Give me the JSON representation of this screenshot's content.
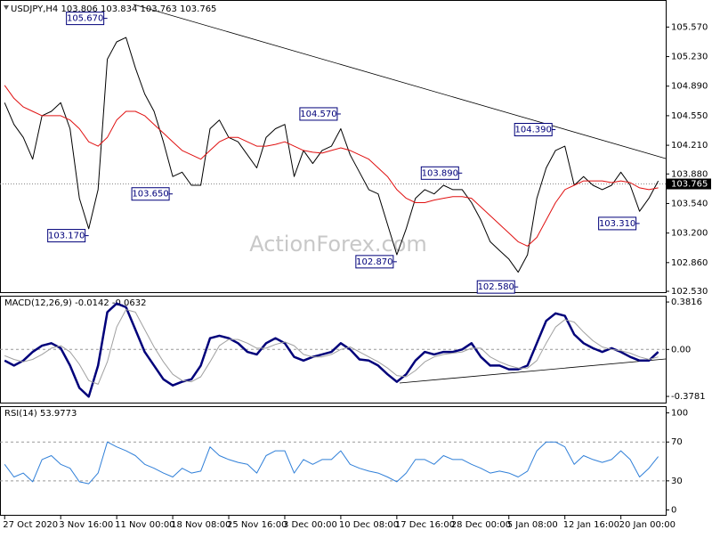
{
  "chart_data": [
    {
      "type": "line",
      "title": "USDJPY,H4  103.806 103.834 103.763 103.765",
      "watermark": "ActionForex.com",
      "xlim": [
        -0.5,
        70.8
      ],
      "ylim": [
        102.52,
        105.83
      ],
      "yticks": [
        {
          "value": 105.57,
          "label": "105.570"
        },
        {
          "value": 105.23,
          "label": "105.230"
        },
        {
          "value": 104.89,
          "label": "104.890"
        },
        {
          "value": 104.55,
          "label": "104.550"
        },
        {
          "value": 104.21,
          "label": "104.210"
        },
        {
          "value": 103.88,
          "label": "103.880"
        },
        {
          "value": 103.54,
          "label": "103.540"
        },
        {
          "value": 103.2,
          "label": "103.200"
        },
        {
          "value": 102.86,
          "label": "102.860"
        },
        {
          "value": 102.53,
          "label": "102.530"
        }
      ],
      "current_price": 103.765,
      "series": [
        {
          "color": "#000000",
          "values": [
            104.7,
            104.45,
            104.3,
            104.05,
            104.55,
            104.6,
            104.7,
            104.4,
            103.6,
            103.25,
            103.7,
            105.2,
            105.4,
            105.45,
            105.1,
            104.8,
            104.6,
            104.25,
            103.85,
            103.9,
            103.75,
            103.75,
            104.4,
            104.5,
            104.3,
            104.25,
            104.1,
            103.95,
            104.3,
            104.4,
            104.45,
            103.85,
            104.15,
            104.0,
            104.15,
            104.2,
            104.4,
            104.1,
            103.9,
            103.7,
            103.65,
            103.3,
            102.95,
            103.25,
            103.6,
            103.7,
            103.65,
            103.75,
            103.7,
            103.7,
            103.55,
            103.35,
            103.1,
            103.0,
            102.9,
            102.75,
            102.95,
            103.6,
            103.95,
            104.15,
            104.2,
            103.75,
            103.85,
            103.75,
            103.7,
            103.75,
            103.9,
            103.75,
            103.45,
            103.6,
            103.8
          ]
        },
        {
          "color": "#e01010",
          "values": [
            104.9,
            104.75,
            104.65,
            104.6,
            104.55,
            104.55,
            104.55,
            104.5,
            104.4,
            104.25,
            104.2,
            104.3,
            104.5,
            104.6,
            104.6,
            104.55,
            104.45,
            104.35,
            104.25,
            104.15,
            104.1,
            104.05,
            104.15,
            104.25,
            104.3,
            104.3,
            104.25,
            104.2,
            104.2,
            104.22,
            104.25,
            104.2,
            104.15,
            104.13,
            104.12,
            104.15,
            104.18,
            104.15,
            104.1,
            104.05,
            103.95,
            103.85,
            103.7,
            103.6,
            103.55,
            103.55,
            103.58,
            103.6,
            103.62,
            103.62,
            103.6,
            103.5,
            103.4,
            103.3,
            103.2,
            103.1,
            103.05,
            103.15,
            103.35,
            103.55,
            103.7,
            103.75,
            103.8,
            103.8,
            103.8,
            103.78,
            103.8,
            103.78,
            103.72,
            103.7,
            103.72
          ]
        }
      ],
      "annotations": [
        {
          "label": "105.670",
          "x": 11,
          "value": 105.67
        },
        {
          "label": "103.170",
          "x": 9,
          "value": 103.17
        },
        {
          "label": "103.650",
          "x": 18,
          "value": 103.65
        },
        {
          "label": "104.570",
          "x": 36,
          "value": 104.57
        },
        {
          "label": "102.870",
          "x": 42,
          "value": 102.87
        },
        {
          "label": "103.890",
          "x": 49,
          "value": 103.89
        },
        {
          "label": "102.580",
          "x": 55,
          "value": 102.58
        },
        {
          "label": "104.390",
          "x": 59,
          "value": 104.39
        },
        {
          "label": "103.310",
          "x": 68,
          "value": 103.31
        }
      ]
    },
    {
      "type": "line",
      "title": "MACD(12,26,9) -0.0142 -0.0632",
      "xlim": [
        -0.5,
        70.8
      ],
      "ylim": [
        -0.428,
        0.425
      ],
      "yticks": [
        0.3816,
        {
          "value": 0,
          "label": "0.00"
        },
        -0.3781
      ],
      "levels": [
        0
      ],
      "series": [
        {
          "color": "#00007a",
          "width": 2.5,
          "values": [
            -0.09,
            -0.13,
            -0.09,
            -0.02,
            0.03,
            0.05,
            0.01,
            -0.13,
            -0.31,
            -0.38,
            -0.13,
            0.3,
            0.37,
            0.34,
            0.16,
            -0.02,
            -0.13,
            -0.24,
            -0.29,
            -0.26,
            -0.24,
            -0.13,
            0.09,
            0.11,
            0.09,
            0.05,
            -0.02,
            -0.04,
            0.05,
            0.09,
            0.05,
            -0.06,
            -0.09,
            -0.06,
            -0.04,
            -0.02,
            0.05,
            0,
            -0.08,
            -0.09,
            -0.13,
            -0.2,
            -0.26,
            -0.2,
            -0.09,
            -0.02,
            -0.04,
            -0.02,
            -0.02,
            0,
            0.05,
            -0.06,
            -0.13,
            -0.13,
            -0.16,
            -0.16,
            -0.13,
            0.05,
            0.23,
            0.29,
            0.27,
            0.12,
            0.05,
            0.01,
            -0.02,
            0.01,
            -0.02,
            -0.06,
            -0.09,
            -0.09,
            -0.02
          ]
        },
        {
          "color": "#a0a0a0",
          "width": 1,
          "values": [
            -0.05,
            -0.08,
            -0.1,
            -0.08,
            -0.04,
            0.01,
            0.03,
            -0.02,
            -0.12,
            -0.25,
            -0.28,
            -0.1,
            0.18,
            0.32,
            0.3,
            0.16,
            0.02,
            -0.1,
            -0.2,
            -0.25,
            -0.26,
            -0.22,
            -0.1,
            0.03,
            0.08,
            0.08,
            0.05,
            0.01,
            0.01,
            0.04,
            0.06,
            0.03,
            -0.04,
            -0.06,
            -0.06,
            -0.04,
            0,
            0.02,
            -0.02,
            -0.06,
            -0.1,
            -0.15,
            -0.21,
            -0.22,
            -0.17,
            -0.1,
            -0.06,
            -0.04,
            -0.03,
            -0.02,
            0.01,
            0.01,
            -0.06,
            -0.1,
            -0.13,
            -0.15,
            -0.15,
            -0.09,
            0.05,
            0.18,
            0.24,
            0.22,
            0.14,
            0.07,
            0.02,
            0,
            -0.01,
            -0.03,
            -0.06,
            -0.08,
            -0.06
          ]
        }
      ]
    },
    {
      "type": "line",
      "title": "RSI(14) 53.9773",
      "xlim": [
        -0.5,
        70.8
      ],
      "ylim": [
        -5,
        106
      ],
      "yticks": [
        100,
        70,
        30,
        0
      ],
      "levels": [
        70,
        30
      ],
      "xticks": [
        {
          "value": 0,
          "label": "27 Oct 2020"
        },
        {
          "value": 6,
          "label": "3 Nov 16:00"
        },
        {
          "value": 12,
          "label": "11 Nov 00:00"
        },
        {
          "value": 18,
          "label": "18 Nov 08:00"
        },
        {
          "value": 24,
          "label": "25 Nov 16:00"
        },
        {
          "value": 30,
          "label": "3 Dec 00:00"
        },
        {
          "value": 36,
          "label": "10 Dec 08:00"
        },
        {
          "value": 42,
          "label": "17 Dec 16:00"
        },
        {
          "value": 48,
          "label": "28 Dec 00:00"
        },
        {
          "value": 54,
          "label": "5 Jan 08:00"
        },
        {
          "value": 60,
          "label": "12 Jan 16:00"
        },
        {
          "value": 66,
          "label": "20 Jan 00:00"
        }
      ],
      "series": [
        {
          "color": "#2f7fd8",
          "width": 1,
          "values": [
            47,
            34,
            38,
            29,
            52,
            56,
            47,
            43,
            29,
            27,
            38,
            70,
            65,
            61,
            56,
            47,
            43,
            38,
            34,
            43,
            38,
            40,
            65,
            56,
            52,
            49,
            47,
            38,
            56,
            61,
            61,
            38,
            52,
            47,
            52,
            52,
            61,
            47,
            43,
            40,
            38,
            34,
            29,
            38,
            52,
            52,
            47,
            56,
            52,
            52,
            47,
            43,
            38,
            40,
            38,
            34,
            40,
            61,
            70,
            70,
            65,
            47,
            56,
            52,
            49,
            52,
            61,
            52,
            34,
            43,
            55
          ]
        }
      ]
    }
  ]
}
